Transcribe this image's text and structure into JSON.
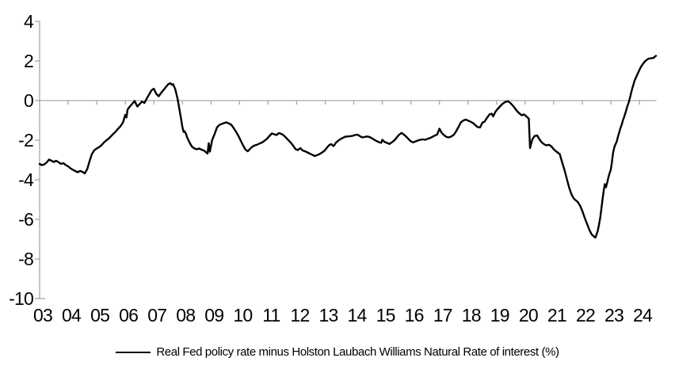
{
  "chart_data": {
    "type": "line",
    "title": "",
    "legend": [
      {
        "label": "Real Fed policy rate minus Holston Laubach Williams Natural Rate of interest (%)",
        "color": "#000000"
      }
    ],
    "colors": {
      "line": "#000000",
      "axis": "#a6a6a6",
      "text": "#000000",
      "background": "#ffffff"
    },
    "grid": false,
    "zero_line": true,
    "x_axis": {
      "range": [
        2003,
        2024.6
      ],
      "tick_labels": [
        "03",
        "04",
        "05",
        "06",
        "07",
        "08",
        "09",
        "10",
        "11",
        "12",
        "13",
        "14",
        "15",
        "16",
        "17",
        "18",
        "19",
        "20",
        "21",
        "22",
        "23",
        "24"
      ]
    },
    "y_axis": {
      "range": [
        -10,
        4
      ],
      "ticks": [
        4,
        2,
        0,
        -2,
        -4,
        -6,
        -8,
        -10
      ],
      "tick_labels": [
        "4",
        "2",
        "0",
        "-2",
        "-4",
        "-6",
        "-8",
        "-10"
      ]
    },
    "series": [
      {
        "name": "Real Fed policy rate minus Holston Laubach Williams Natural Rate of interest (%)",
        "points": [
          [
            2003.0,
            -3.2
          ],
          [
            2003.08,
            -3.26
          ],
          [
            2003.17,
            -3.22
          ],
          [
            2003.25,
            -3.12
          ],
          [
            2003.33,
            -2.98
          ],
          [
            2003.42,
            -3.04
          ],
          [
            2003.5,
            -3.1
          ],
          [
            2003.58,
            -3.04
          ],
          [
            2003.67,
            -3.12
          ],
          [
            2003.75,
            -3.2
          ],
          [
            2003.83,
            -3.16
          ],
          [
            2003.92,
            -3.26
          ],
          [
            2004.0,
            -3.32
          ],
          [
            2004.08,
            -3.42
          ],
          [
            2004.17,
            -3.5
          ],
          [
            2004.25,
            -3.56
          ],
          [
            2004.33,
            -3.62
          ],
          [
            2004.42,
            -3.55
          ],
          [
            2004.5,
            -3.6
          ],
          [
            2004.58,
            -3.68
          ],
          [
            2004.67,
            -3.45
          ],
          [
            2004.75,
            -3.05
          ],
          [
            2004.83,
            -2.7
          ],
          [
            2004.92,
            -2.5
          ],
          [
            2005.0,
            -2.42
          ],
          [
            2005.08,
            -2.35
          ],
          [
            2005.17,
            -2.25
          ],
          [
            2005.25,
            -2.12
          ],
          [
            2005.33,
            -2.02
          ],
          [
            2005.42,
            -1.92
          ],
          [
            2005.5,
            -1.8
          ],
          [
            2005.58,
            -1.68
          ],
          [
            2005.67,
            -1.55
          ],
          [
            2005.75,
            -1.42
          ],
          [
            2005.83,
            -1.3
          ],
          [
            2005.92,
            -1.1
          ],
          [
            2006.0,
            -0.72
          ],
          [
            2006.04,
            -0.85
          ],
          [
            2006.08,
            -0.45
          ],
          [
            2006.17,
            -0.28
          ],
          [
            2006.25,
            -0.15
          ],
          [
            2006.33,
            -0.02
          ],
          [
            2006.42,
            -0.3
          ],
          [
            2006.5,
            -0.18
          ],
          [
            2006.58,
            -0.05
          ],
          [
            2006.67,
            -0.12
          ],
          [
            2006.75,
            0.1
          ],
          [
            2006.83,
            0.3
          ],
          [
            2006.92,
            0.52
          ],
          [
            2007.0,
            0.6
          ],
          [
            2007.08,
            0.35
          ],
          [
            2007.17,
            0.22
          ],
          [
            2007.25,
            0.38
          ],
          [
            2007.33,
            0.52
          ],
          [
            2007.42,
            0.68
          ],
          [
            2007.5,
            0.82
          ],
          [
            2007.58,
            0.88
          ],
          [
            2007.63,
            0.8
          ],
          [
            2007.67,
            0.83
          ],
          [
            2007.75,
            0.58
          ],
          [
            2007.83,
            0.1
          ],
          [
            2007.92,
            -0.65
          ],
          [
            2008.0,
            -1.35
          ],
          [
            2008.04,
            -1.58
          ],
          [
            2008.08,
            -1.55
          ],
          [
            2008.13,
            -1.7
          ],
          [
            2008.17,
            -1.88
          ],
          [
            2008.25,
            -2.12
          ],
          [
            2008.33,
            -2.32
          ],
          [
            2008.42,
            -2.42
          ],
          [
            2008.5,
            -2.46
          ],
          [
            2008.58,
            -2.42
          ],
          [
            2008.67,
            -2.48
          ],
          [
            2008.75,
            -2.52
          ],
          [
            2008.83,
            -2.62
          ],
          [
            2008.88,
            -2.68
          ],
          [
            2008.92,
            -2.15
          ],
          [
            2008.96,
            -2.58
          ],
          [
            2009.0,
            -2.3
          ],
          [
            2009.04,
            -2.0
          ],
          [
            2009.13,
            -1.68
          ],
          [
            2009.21,
            -1.35
          ],
          [
            2009.29,
            -1.23
          ],
          [
            2009.38,
            -1.18
          ],
          [
            2009.46,
            -1.13
          ],
          [
            2009.54,
            -1.1
          ],
          [
            2009.63,
            -1.16
          ],
          [
            2009.71,
            -1.22
          ],
          [
            2009.79,
            -1.38
          ],
          [
            2009.88,
            -1.58
          ],
          [
            2009.96,
            -1.78
          ],
          [
            2010.04,
            -2.02
          ],
          [
            2010.13,
            -2.28
          ],
          [
            2010.21,
            -2.48
          ],
          [
            2010.29,
            -2.56
          ],
          [
            2010.38,
            -2.42
          ],
          [
            2010.46,
            -2.32
          ],
          [
            2010.54,
            -2.26
          ],
          [
            2010.63,
            -2.22
          ],
          [
            2010.71,
            -2.16
          ],
          [
            2010.79,
            -2.12
          ],
          [
            2010.88,
            -2.02
          ],
          [
            2010.96,
            -1.93
          ],
          [
            2011.04,
            -1.8
          ],
          [
            2011.13,
            -1.66
          ],
          [
            2011.21,
            -1.7
          ],
          [
            2011.29,
            -1.74
          ],
          [
            2011.38,
            -1.64
          ],
          [
            2011.46,
            -1.68
          ],
          [
            2011.54,
            -1.75
          ],
          [
            2011.63,
            -1.88
          ],
          [
            2011.71,
            -2.0
          ],
          [
            2011.79,
            -2.12
          ],
          [
            2011.88,
            -2.28
          ],
          [
            2011.96,
            -2.45
          ],
          [
            2012.04,
            -2.5
          ],
          [
            2012.13,
            -2.4
          ],
          [
            2012.21,
            -2.52
          ],
          [
            2012.29,
            -2.56
          ],
          [
            2012.38,
            -2.62
          ],
          [
            2012.46,
            -2.68
          ],
          [
            2012.54,
            -2.73
          ],
          [
            2012.63,
            -2.8
          ],
          [
            2012.71,
            -2.76
          ],
          [
            2012.79,
            -2.71
          ],
          [
            2012.88,
            -2.63
          ],
          [
            2012.96,
            -2.55
          ],
          [
            2013.04,
            -2.42
          ],
          [
            2013.13,
            -2.26
          ],
          [
            2013.21,
            -2.2
          ],
          [
            2013.29,
            -2.3
          ],
          [
            2013.38,
            -2.12
          ],
          [
            2013.46,
            -2.02
          ],
          [
            2013.54,
            -1.94
          ],
          [
            2013.63,
            -1.87
          ],
          [
            2013.71,
            -1.82
          ],
          [
            2013.79,
            -1.81
          ],
          [
            2013.88,
            -1.8
          ],
          [
            2013.96,
            -1.78
          ],
          [
            2014.04,
            -1.74
          ],
          [
            2014.13,
            -1.72
          ],
          [
            2014.21,
            -1.79
          ],
          [
            2014.29,
            -1.86
          ],
          [
            2014.38,
            -1.84
          ],
          [
            2014.46,
            -1.81
          ],
          [
            2014.54,
            -1.83
          ],
          [
            2014.63,
            -1.9
          ],
          [
            2014.71,
            -1.97
          ],
          [
            2014.79,
            -2.04
          ],
          [
            2014.88,
            -2.1
          ],
          [
            2014.96,
            -2.13
          ],
          [
            2015.0,
            -1.98
          ],
          [
            2015.08,
            -2.09
          ],
          [
            2015.17,
            -2.14
          ],
          [
            2015.25,
            -2.19
          ],
          [
            2015.33,
            -2.11
          ],
          [
            2015.42,
            -2.01
          ],
          [
            2015.5,
            -1.87
          ],
          [
            2015.58,
            -1.73
          ],
          [
            2015.67,
            -1.63
          ],
          [
            2015.75,
            -1.71
          ],
          [
            2015.83,
            -1.81
          ],
          [
            2015.92,
            -1.95
          ],
          [
            2016.0,
            -2.06
          ],
          [
            2016.08,
            -2.11
          ],
          [
            2016.17,
            -2.06
          ],
          [
            2016.25,
            -2.01
          ],
          [
            2016.33,
            -1.98
          ],
          [
            2016.42,
            -1.96
          ],
          [
            2016.5,
            -1.98
          ],
          [
            2016.58,
            -1.93
          ],
          [
            2016.67,
            -1.89
          ],
          [
            2016.75,
            -1.83
          ],
          [
            2016.83,
            -1.77
          ],
          [
            2016.92,
            -1.71
          ],
          [
            2017.0,
            -1.42
          ],
          [
            2017.08,
            -1.63
          ],
          [
            2017.17,
            -1.76
          ],
          [
            2017.25,
            -1.84
          ],
          [
            2017.33,
            -1.86
          ],
          [
            2017.42,
            -1.81
          ],
          [
            2017.5,
            -1.73
          ],
          [
            2017.58,
            -1.56
          ],
          [
            2017.67,
            -1.32
          ],
          [
            2017.75,
            -1.1
          ],
          [
            2017.83,
            -1.01
          ],
          [
            2017.92,
            -0.96
          ],
          [
            2018.0,
            -1.01
          ],
          [
            2018.08,
            -1.06
          ],
          [
            2018.17,
            -1.13
          ],
          [
            2018.25,
            -1.23
          ],
          [
            2018.33,
            -1.33
          ],
          [
            2018.42,
            -1.36
          ],
          [
            2018.5,
            -1.12
          ],
          [
            2018.58,
            -1.06
          ],
          [
            2018.67,
            -0.86
          ],
          [
            2018.75,
            -0.7
          ],
          [
            2018.83,
            -0.66
          ],
          [
            2018.88,
            -0.8
          ],
          [
            2018.96,
            -0.56
          ],
          [
            2019.04,
            -0.42
          ],
          [
            2019.13,
            -0.28
          ],
          [
            2019.21,
            -0.16
          ],
          [
            2019.29,
            -0.08
          ],
          [
            2019.38,
            -0.03
          ],
          [
            2019.46,
            -0.09
          ],
          [
            2019.54,
            -0.21
          ],
          [
            2019.63,
            -0.36
          ],
          [
            2019.71,
            -0.52
          ],
          [
            2019.79,
            -0.64
          ],
          [
            2019.88,
            -0.74
          ],
          [
            2019.96,
            -0.7
          ],
          [
            2020.04,
            -0.79
          ],
          [
            2020.13,
            -0.92
          ],
          [
            2020.17,
            -2.4
          ],
          [
            2020.25,
            -1.96
          ],
          [
            2020.33,
            -1.79
          ],
          [
            2020.42,
            -1.76
          ],
          [
            2020.5,
            -1.96
          ],
          [
            2020.58,
            -2.11
          ],
          [
            2020.67,
            -2.21
          ],
          [
            2020.75,
            -2.26
          ],
          [
            2020.83,
            -2.23
          ],
          [
            2020.92,
            -2.31
          ],
          [
            2021.0,
            -2.46
          ],
          [
            2021.08,
            -2.56
          ],
          [
            2021.17,
            -2.66
          ],
          [
            2021.21,
            -2.7
          ],
          [
            2021.29,
            -3.1
          ],
          [
            2021.38,
            -3.52
          ],
          [
            2021.46,
            -3.96
          ],
          [
            2021.54,
            -4.4
          ],
          [
            2021.63,
            -4.76
          ],
          [
            2021.71,
            -4.96
          ],
          [
            2021.79,
            -5.06
          ],
          [
            2021.83,
            -5.1
          ],
          [
            2021.92,
            -5.3
          ],
          [
            2022.0,
            -5.56
          ],
          [
            2022.08,
            -5.9
          ],
          [
            2022.17,
            -6.24
          ],
          [
            2022.25,
            -6.54
          ],
          [
            2022.33,
            -6.76
          ],
          [
            2022.42,
            -6.88
          ],
          [
            2022.46,
            -6.92
          ],
          [
            2022.54,
            -6.6
          ],
          [
            2022.58,
            -6.3
          ],
          [
            2022.63,
            -5.9
          ],
          [
            2022.67,
            -5.45
          ],
          [
            2022.71,
            -5.0
          ],
          [
            2022.75,
            -4.55
          ],
          [
            2022.79,
            -4.22
          ],
          [
            2022.83,
            -4.38
          ],
          [
            2022.88,
            -4.1
          ],
          [
            2022.92,
            -3.85
          ],
          [
            2022.96,
            -3.65
          ],
          [
            2023.0,
            -3.48
          ],
          [
            2023.04,
            -3.1
          ],
          [
            2023.08,
            -2.62
          ],
          [
            2023.13,
            -2.32
          ],
          [
            2023.21,
            -2.05
          ],
          [
            2023.25,
            -1.82
          ],
          [
            2023.29,
            -1.62
          ],
          [
            2023.33,
            -1.42
          ],
          [
            2023.38,
            -1.22
          ],
          [
            2023.42,
            -1.02
          ],
          [
            2023.46,
            -0.85
          ],
          [
            2023.5,
            -0.68
          ],
          [
            2023.54,
            -0.48
          ],
          [
            2023.58,
            -0.28
          ],
          [
            2023.63,
            -0.08
          ],
          [
            2023.67,
            0.15
          ],
          [
            2023.71,
            0.38
          ],
          [
            2023.75,
            0.6
          ],
          [
            2023.79,
            0.8
          ],
          [
            2023.83,
            1.0
          ],
          [
            2023.88,
            1.16
          ],
          [
            2023.92,
            1.3
          ],
          [
            2023.96,
            1.42
          ],
          [
            2024.0,
            1.54
          ],
          [
            2024.04,
            1.66
          ],
          [
            2024.08,
            1.76
          ],
          [
            2024.13,
            1.86
          ],
          [
            2024.17,
            1.94
          ],
          [
            2024.21,
            2.0
          ],
          [
            2024.25,
            2.05
          ],
          [
            2024.29,
            2.09
          ],
          [
            2024.33,
            2.12
          ],
          [
            2024.38,
            2.13
          ],
          [
            2024.42,
            2.14
          ],
          [
            2024.46,
            2.15
          ],
          [
            2024.5,
            2.16
          ],
          [
            2024.54,
            2.22
          ],
          [
            2024.58,
            2.26
          ]
        ]
      }
    ]
  }
}
